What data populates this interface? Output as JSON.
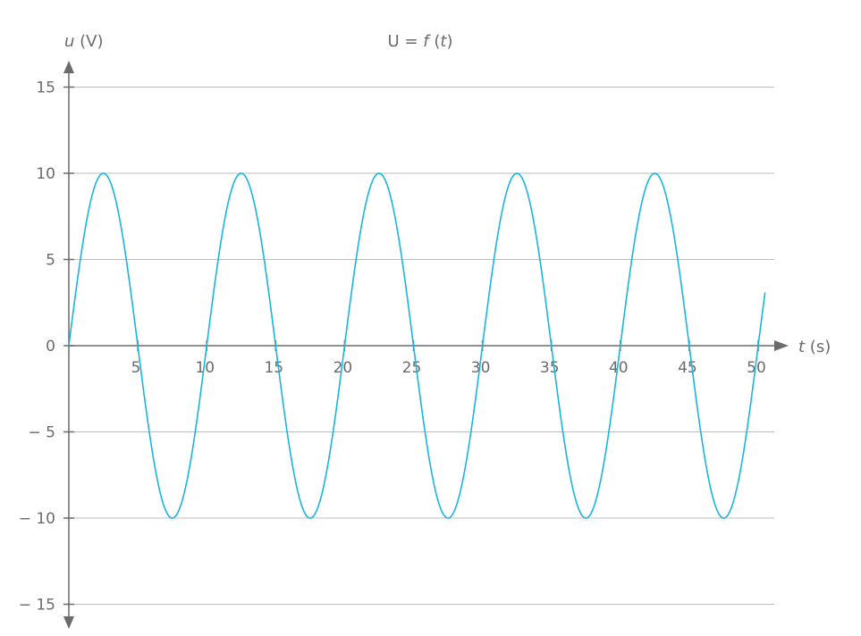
{
  "chart_data": {
    "type": "line",
    "title": "U = f (t)",
    "title_parts": {
      "u": "U",
      "eq": "=",
      "f": "f",
      "lp": "(",
      "t": "t",
      "rp": ")"
    },
    "ylabel": "u (V)",
    "ylabel_parts": {
      "var": "u",
      "unit": "(V)"
    },
    "xlabel": "t (s)",
    "xlabel_parts": {
      "var": "t",
      "unit": "(s)"
    },
    "xlim": [
      0,
      50
    ],
    "ylim": [
      -15,
      15
    ],
    "x_ticks": [
      "5",
      "10",
      "15",
      "20",
      "25",
      "30",
      "35",
      "40",
      "45",
      "50"
    ],
    "y_ticks": [
      "15",
      "10",
      "5",
      "0",
      "− 5",
      "− 10",
      "− 15"
    ],
    "grid": true,
    "series": [
      {
        "color": "#1ab4e0",
        "function": "10*sin(2*pi*t/10)",
        "amplitude": 10,
        "period": 10,
        "t_range": [
          0,
          50.5
        ]
      }
    ]
  },
  "colors": {
    "axis": "#6b6b6b",
    "grid": "#bdbdbd",
    "curve": "#1ab4e0"
  }
}
